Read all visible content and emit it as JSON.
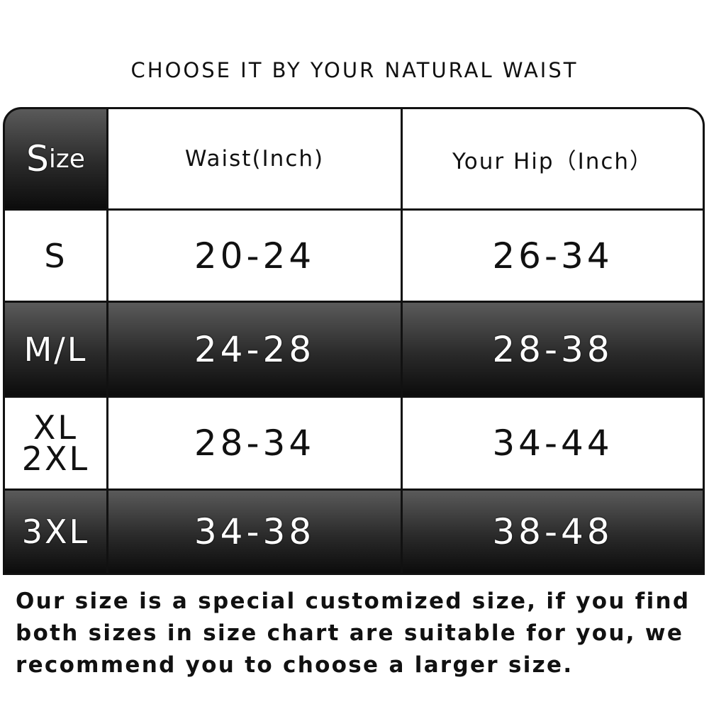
{
  "title": "CHOOSE IT BY YOUR NATURAL WAIST",
  "table": {
    "headers": {
      "size_first": "S",
      "size_rest": "ize",
      "waist": "Waist(Inch)",
      "hip": "Your Hip（Inch）"
    },
    "rows": [
      {
        "size": "S",
        "waist": "20-24",
        "hip": "26-34",
        "dark": false
      },
      {
        "size": "M/L",
        "waist": "24-28",
        "hip": "28-38",
        "dark": true
      },
      {
        "size": "XL\n2XL",
        "waist": "28-34",
        "hip": "34-44",
        "dark": false
      },
      {
        "size": "3XL",
        "waist": "34-38",
        "hip": "38-48",
        "dark": true
      }
    ]
  },
  "note": "Our size is a special customized size, if you find both sizes in size chart are suitable for you, we recommend you to choose a larger size.",
  "colors": {
    "dark_row": "#1a1a1a",
    "light_row": "#ffffff",
    "text": "#111111"
  }
}
